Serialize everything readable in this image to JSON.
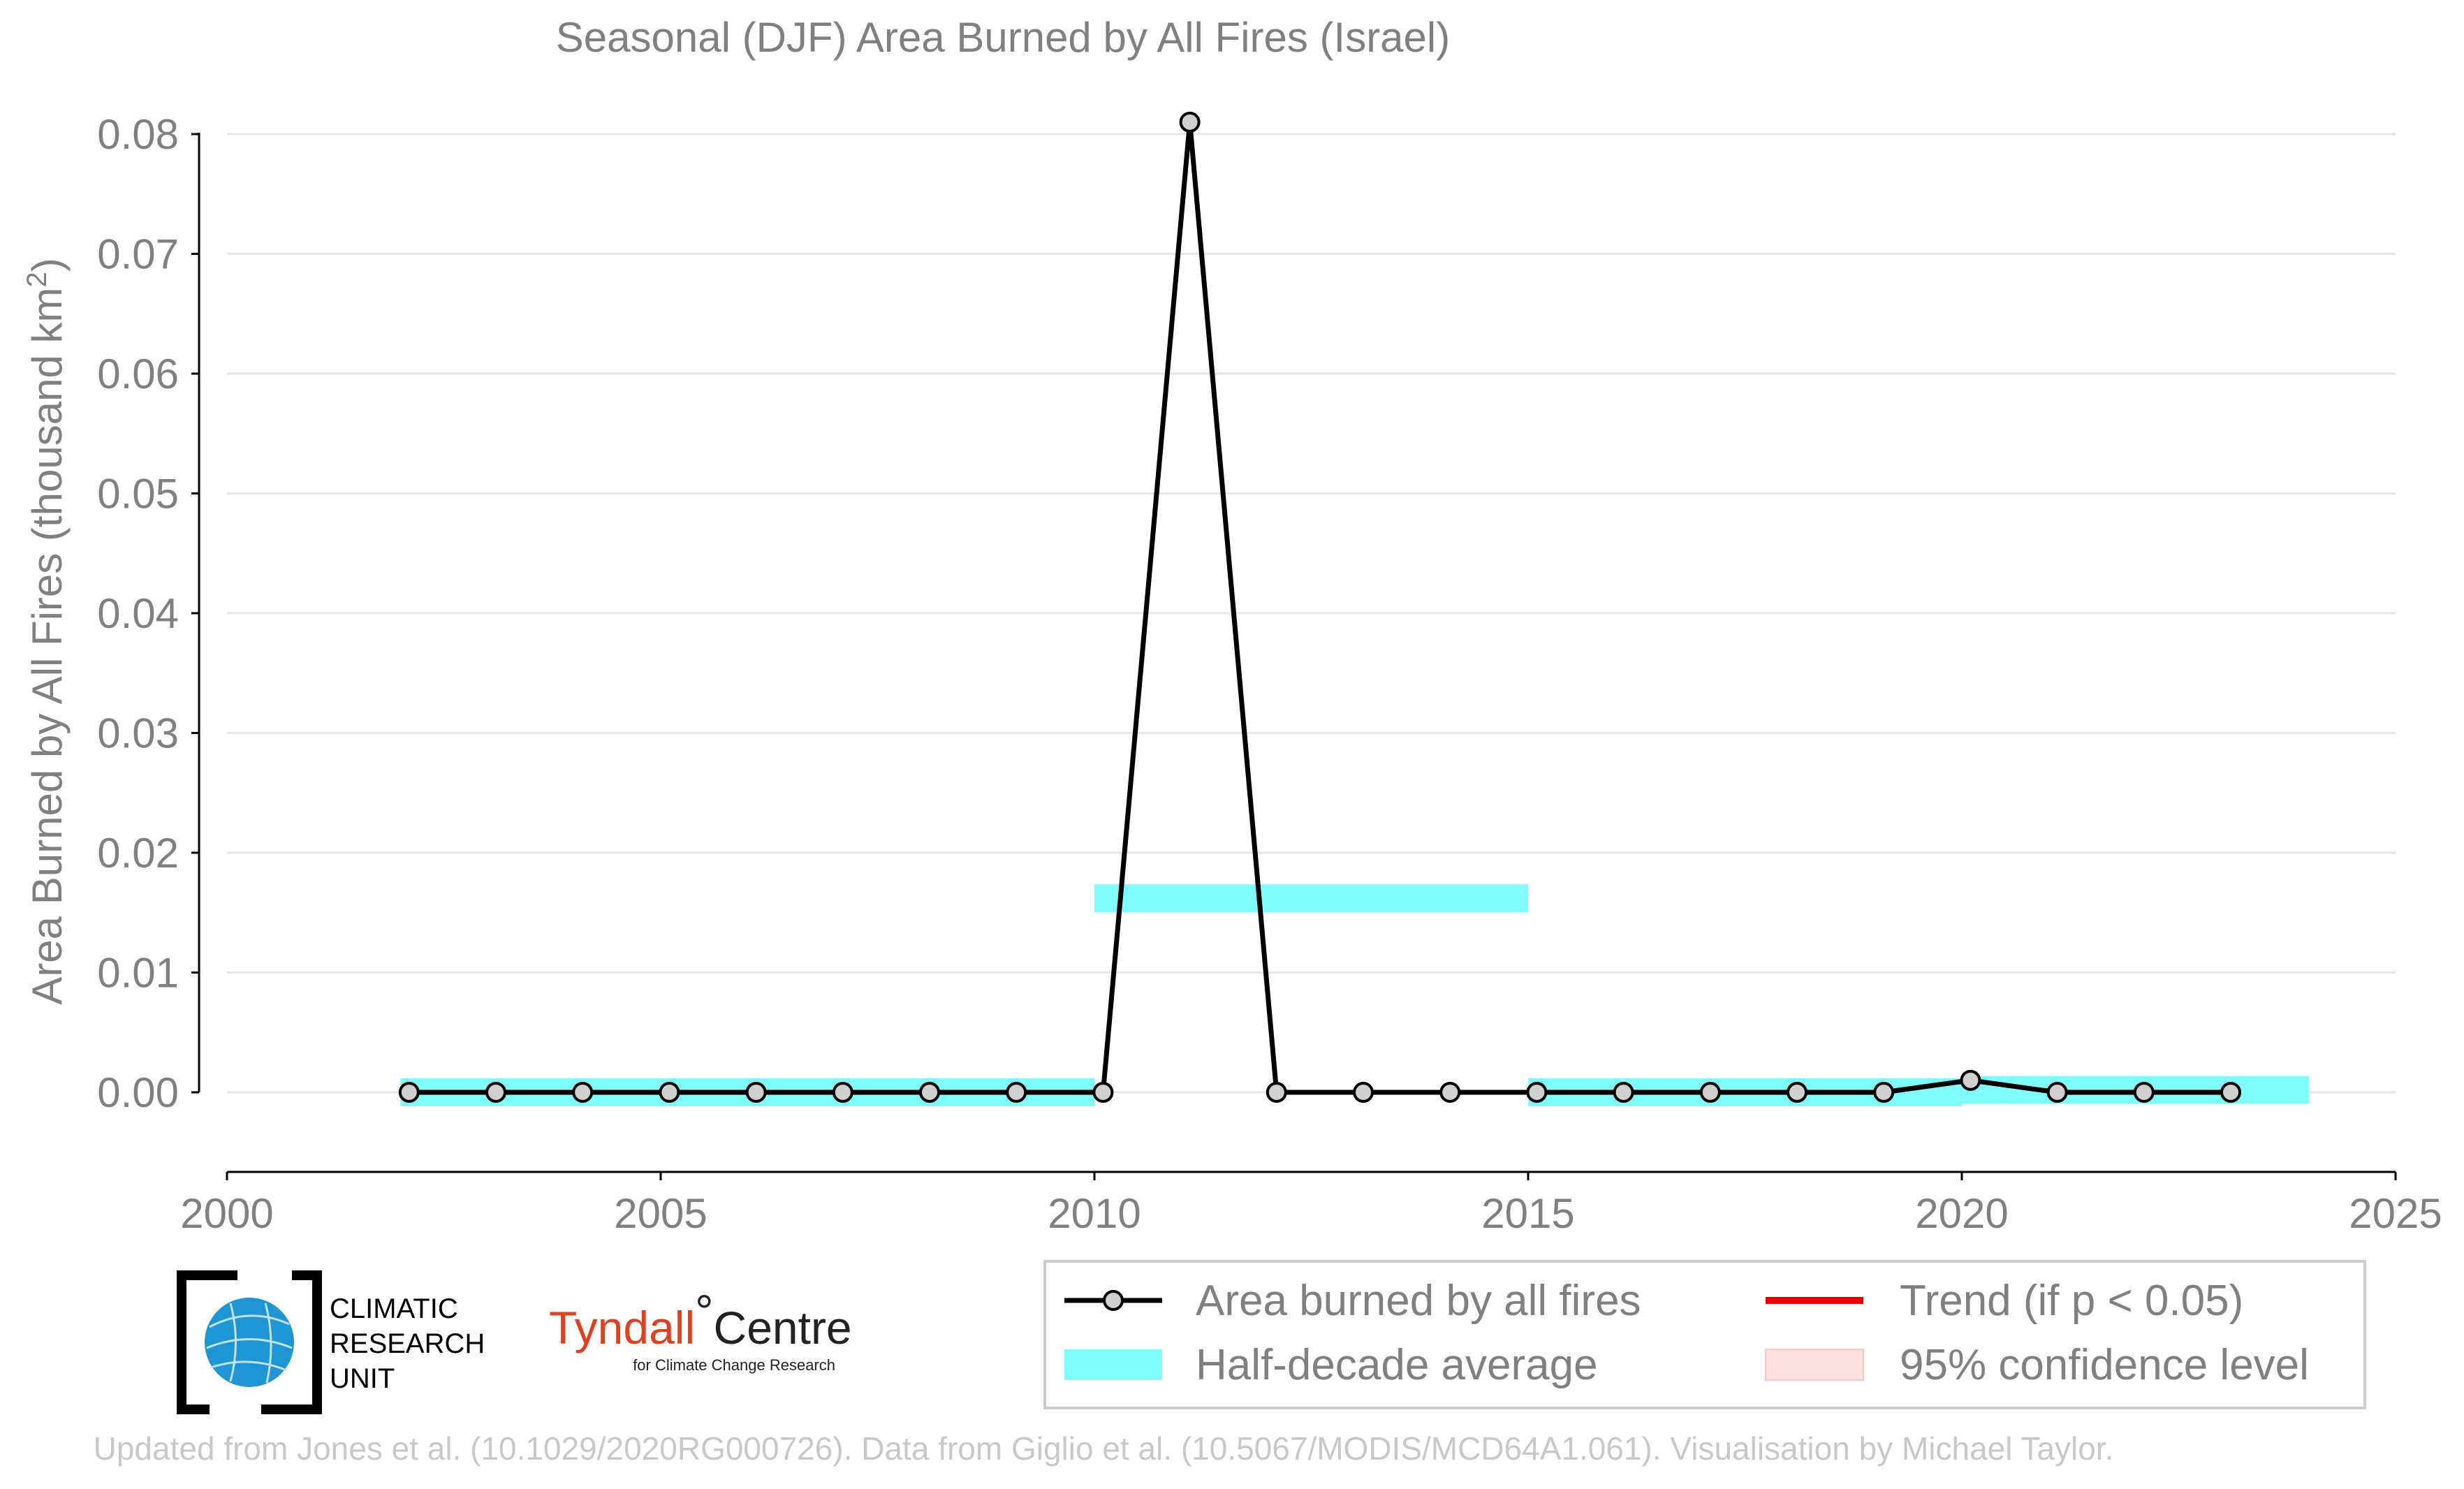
{
  "chart_data": {
    "type": "line",
    "title": "Seasonal (DJF) Area Burned by All Fires (Israel)",
    "xlabel": "",
    "ylabel": "Area Burned by All Fires (thousand km",
    "ylabel_sup": "2",
    "ylabel_close": ")",
    "xlim": [
      2000,
      2025
    ],
    "ylim": [
      -0.0065,
      0.082
    ],
    "xticks": [
      2000,
      2005,
      2010,
      2015,
      2020,
      2025
    ],
    "xtick_labels": [
      "2000",
      "2005",
      "2010",
      "2015",
      "2020",
      "2025"
    ],
    "yticks": [
      0.0,
      0.01,
      0.02,
      0.03,
      0.04,
      0.05,
      0.06,
      0.07,
      0.08
    ],
    "ytick_labels": [
      "0.00",
      "0.01",
      "0.02",
      "0.03",
      "0.04",
      "0.05",
      "0.06",
      "0.07",
      "0.08"
    ],
    "grid": true,
    "legend_position": "bottom-right",
    "series": [
      {
        "name": "Area burned by all fires",
        "color": "#000000",
        "marker_color": "#d0d0d0",
        "x": [
          2002.1,
          2003.1,
          2004.1,
          2005.1,
          2006.1,
          2007.1,
          2008.1,
          2009.1,
          2010.1,
          2011.1,
          2012.1,
          2013.1,
          2014.1,
          2015.1,
          2016.1,
          2017.1,
          2018.1,
          2019.1,
          2020.1,
          2021.1,
          2022.1,
          2023.1
        ],
        "values": [
          0.0,
          0.0,
          0.0,
          0.0,
          0.0,
          0.0,
          0.0,
          0.0,
          0.0,
          0.081,
          0.0,
          0.0,
          0.0,
          0.0,
          0.0,
          0.0,
          0.0,
          0.0,
          0.001,
          0.0,
          0.0,
          0.0
        ]
      },
      {
        "name": "Half-decade average",
        "color": "#7ffcfc",
        "segments": [
          {
            "x_start": 2002,
            "x_end": 2010,
            "value": 0.0
          },
          {
            "x_start": 2010,
            "x_end": 2015,
            "value": 0.0162
          },
          {
            "x_start": 2015,
            "x_end": 2020,
            "value": 0.0
          },
          {
            "x_start": 2020,
            "x_end": 2024,
            "value": 0.0002
          }
        ]
      }
    ],
    "legend": [
      {
        "label": "Area burned by all fires",
        "kind": "line-marker",
        "color": "#000000"
      },
      {
        "label": "Trend (if p < 0.05)",
        "kind": "line",
        "color": "#e00000"
      },
      {
        "label": "Half-decade average",
        "kind": "band",
        "color": "#7ffcfc"
      },
      {
        "label": "95% confidence level",
        "kind": "patch",
        "color": "#fde0e0"
      }
    ]
  },
  "logos": {
    "cru_lines": [
      "CLIMATIC",
      "RESEARCH",
      "UNIT"
    ],
    "tyndall_name": "Tyndall",
    "tyndall_degree": "°",
    "tyndall_centre": "Centre",
    "tyndall_sub": "for Climate Change Research"
  },
  "footer": "Updated from Jones et al. (10.1029/2020RG000726). Data from Giglio et al. (10.5067/MODIS/MCD64A1.061). Visualisation by Michael Taylor."
}
